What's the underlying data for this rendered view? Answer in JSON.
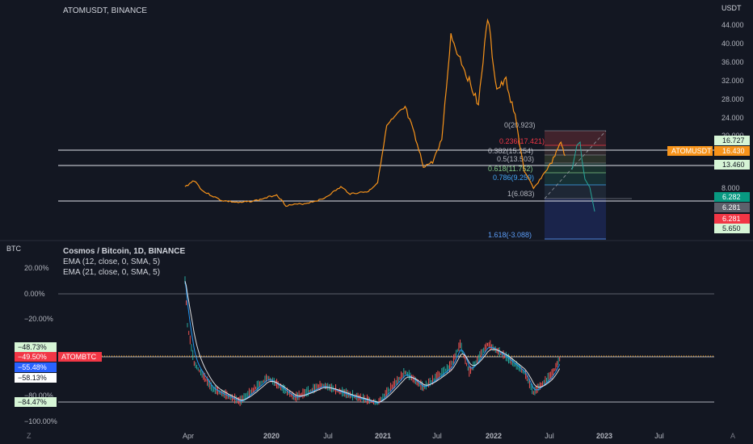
{
  "colors": {
    "background": "#131722",
    "text": "#d1d4dc",
    "price_line": "#f7931a",
    "projection": "#26a69a",
    "white_line": "#e0e3eb",
    "red_label": "#f23645",
    "blue_label": "#2962ff",
    "teal_label": "#089981",
    "grey_label": "#5d606b",
    "green_label": "#d6f5d6",
    "ema_fast": "#2196f3",
    "ema_slow": "#ff5252",
    "orange_dashed": "#ff9800"
  },
  "top_panel": {
    "title": "ATOMUSDT, BINANCE",
    "axis_unit": "USDT",
    "symbol_tag": "ATOMUSDT"
  },
  "bottom_panel": {
    "axis_unit": "BTC",
    "title": "Cosmos / Bitcoin, 1D, BINANCE",
    "ema1": "EMA (12, close, 0, SMA, 5)",
    "ema2": "EMA (21, close, 0, SMA, 5)",
    "symbol_tag": "ATOMBTC"
  },
  "footer": {
    "z_button": "Z",
    "a_button": "A"
  },
  "chart_data": [
    {
      "type": "line",
      "name": "ATOMUSDT",
      "y_ticks": [
        "44.000",
        "40.000",
        "36.000",
        "32.000",
        "28.000",
        "24.000",
        "20.000",
        "8.000"
      ],
      "x_ticks": [
        "Apr",
        "2020",
        "Jul",
        "2021",
        "Jul",
        "2022",
        "Jul",
        "2023",
        "Jul"
      ],
      "approx_points": [
        [
          "2019-04",
          6.5
        ],
        [
          "2019-05",
          8.0
        ],
        [
          "2019-06",
          5.5
        ],
        [
          "2019-08",
          3.5
        ],
        [
          "2019-10",
          3.0
        ],
        [
          "2019-12",
          3.6
        ],
        [
          "2020-02",
          4.8
        ],
        [
          "2020-03",
          2.4
        ],
        [
          "2020-05",
          2.8
        ],
        [
          "2020-07",
          3.8
        ],
        [
          "2020-09",
          6.5
        ],
        [
          "2020-10",
          5.0
        ],
        [
          "2020-12",
          5.5
        ],
        [
          "2021-01",
          7.5
        ],
        [
          "2021-02",
          20.0
        ],
        [
          "2021-03",
          22.0
        ],
        [
          "2021-04",
          24.0
        ],
        [
          "2021-05",
          18.0
        ],
        [
          "2021-06",
          11.0
        ],
        [
          "2021-07",
          12.0
        ],
        [
          "2021-08",
          17.0
        ],
        [
          "2021-09",
          40.0
        ],
        [
          "2021-10",
          35.0
        ],
        [
          "2021-11",
          30.0
        ],
        [
          "2021-12",
          25.0
        ],
        [
          "2022-01",
          44.0
        ],
        [
          "2022-02",
          28.0
        ],
        [
          "2022-03",
          30.0
        ],
        [
          "2022-04",
          22.0
        ],
        [
          "2022-05",
          10.0
        ],
        [
          "2022-06",
          6.1
        ],
        [
          "2022-07",
          9.0
        ],
        [
          "2022-08",
          12.0
        ],
        [
          "2022-09",
          16.4
        ],
        [
          "2022-09b",
          13.4
        ]
      ],
      "fib_levels": [
        {
          "label": "0(20.923)",
          "color": "#b2b5be"
        },
        {
          "label": "0.236(17.421)",
          "color": "#f23645"
        },
        {
          "label": "0.382(15.254)",
          "color": "#b2b5be"
        },
        {
          "label": "0.5(13.503)",
          "color": "#b2b5be"
        },
        {
          "label": "0.618(11.752)",
          "color": "#81c784"
        },
        {
          "label": "0.786(9.259)",
          "color": "#42a5f5"
        },
        {
          "label": "1(6.083)",
          "color": "#b2b5be"
        },
        {
          "label": "1.618(-3.088)",
          "color": "#5b9cf6"
        }
      ],
      "price_labels": [
        {
          "text": "16.727",
          "style": "green"
        },
        {
          "text": "16.430",
          "style": "orange"
        },
        {
          "text": "13.460",
          "style": "green"
        },
        {
          "text": "6.282",
          "style": "teal"
        },
        {
          "text": "6.281",
          "style": "grey"
        },
        {
          "text": "6.281",
          "style": "red"
        },
        {
          "text": "5.650",
          "style": "green"
        }
      ]
    },
    {
      "type": "line",
      "name": "ATOMBTC",
      "y_ticks": [
        "20.00%",
        "0.00%",
        "−20.00%",
        "−80.00%",
        "−100.00%"
      ],
      "series": [
        {
          "name": "EMA (12, close, 0, SMA, 5)"
        },
        {
          "name": "EMA (21, close, 0, SMA, 5)"
        }
      ],
      "approx_points_pct": [
        [
          "2019-04",
          10
        ],
        [
          "2019-04b",
          -25
        ],
        [
          "2019-05",
          -55
        ],
        [
          "2019-07",
          -75
        ],
        [
          "2019-10",
          -85
        ],
        [
          "2020-01",
          -66
        ],
        [
          "2020-04",
          -82
        ],
        [
          "2020-07",
          -72
        ],
        [
          "2020-10",
          -80
        ],
        [
          "2021-01",
          -86
        ],
        [
          "2021-04",
          -62
        ],
        [
          "2021-06",
          -74
        ],
        [
          "2021-09",
          -57
        ],
        [
          "2021-10",
          -40
        ],
        [
          "2021-11",
          -62
        ],
        [
          "2022-01",
          -40
        ],
        [
          "2022-03",
          -50
        ],
        [
          "2022-05",
          -62
        ],
        [
          "2022-06",
          -78
        ],
        [
          "2022-08",
          -64
        ],
        [
          "2022-09",
          -49.5
        ]
      ],
      "price_labels": [
        {
          "text": "−48.73%",
          "style": "green"
        },
        {
          "text": "−49.50%",
          "style": "red"
        },
        {
          "text": "−55.48%",
          "style": "blue"
        },
        {
          "text": "−58.13%",
          "style": "white"
        },
        {
          "text": "−84.47%",
          "style": "green"
        }
      ]
    }
  ]
}
